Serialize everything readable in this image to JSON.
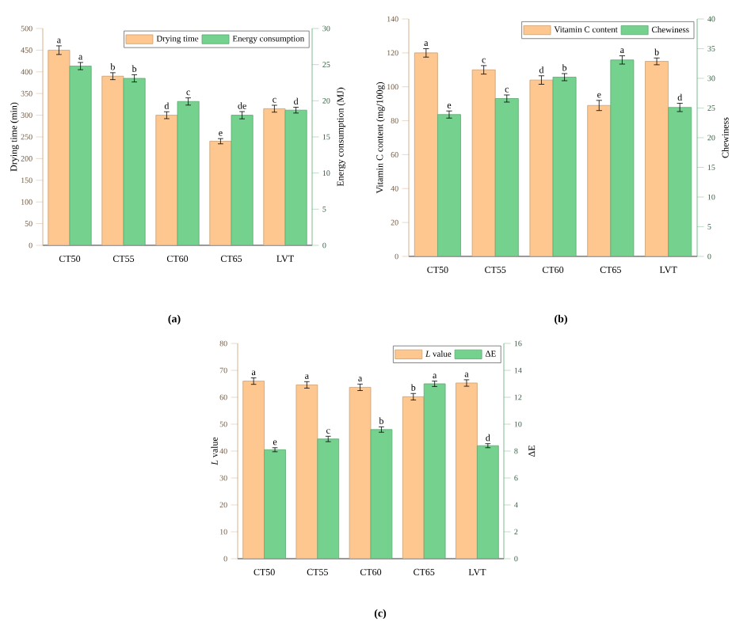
{
  "chart_data": [
    {
      "type": "bar",
      "categories": [
        "CT50",
        "CT55",
        "CT60",
        "CT65",
        "LVT"
      ],
      "ylabel": "Drying time (min)",
      "y2label": "Energy consumption (MJ)",
      "ylim": [
        0,
        500
      ],
      "yticks": [
        0,
        50,
        100,
        150,
        200,
        250,
        300,
        350,
        400,
        450,
        500
      ],
      "y2lim": [
        0,
        30
      ],
      "y2ticks": [
        0,
        5,
        10,
        15,
        20,
        25,
        30
      ],
      "legend": "top right",
      "annotations": [
        "(a)"
      ],
      "series": [
        {
          "name": "Drying time",
          "color": "#fdc78f",
          "values": [
            450,
            390,
            300,
            240,
            315
          ],
          "errors": [
            10,
            8,
            8,
            6,
            8
          ],
          "value_labels": [
            "a",
            "b",
            "d",
            "e",
            "c"
          ]
        },
        {
          "name": "Energy consumption",
          "color": "#74d28e",
          "axis": "y2",
          "values": [
            24.8,
            23.1,
            19.9,
            18.0,
            18.7
          ],
          "errors": [
            0.5,
            0.5,
            0.5,
            0.5,
            0.4
          ],
          "value_labels": [
            "a",
            "b",
            "c",
            "de",
            "d"
          ]
        }
      ]
    },
    {
      "type": "bar",
      "categories": [
        "CT50",
        "CT55",
        "CT60",
        "CT65",
        "LVT"
      ],
      "ylabel": "Vitamin C content (mg/100g)",
      "y2label": "Chewiness",
      "ylim": [
        0,
        140
      ],
      "yticks": [
        0,
        20,
        40,
        60,
        80,
        100,
        120,
        140
      ],
      "y2lim": [
        0,
        40
      ],
      "y2ticks": [
        0,
        5,
        10,
        15,
        20,
        25,
        30,
        35,
        40
      ],
      "legend": "top right",
      "annotations": [
        "(b)"
      ],
      "series": [
        {
          "name": "Vitamin C content",
          "color": "#fdc78f",
          "values": [
            120,
            110,
            104,
            89,
            115
          ],
          "errors": [
            2.5,
            2.5,
            2.5,
            3,
            2
          ],
          "value_labels": [
            "a",
            "c",
            "d",
            "e",
            "b"
          ]
        },
        {
          "name": "Chewiness",
          "color": "#74d28e",
          "axis": "y2",
          "values": [
            23.9,
            26.6,
            30.2,
            33.1,
            25.1
          ],
          "errors": [
            0.6,
            0.6,
            0.6,
            0.7,
            0.7
          ],
          "value_labels": [
            "e",
            "c",
            "b",
            "a",
            "d"
          ]
        }
      ]
    },
    {
      "type": "bar",
      "categories": [
        "CT50",
        "CT55",
        "CT60",
        "CT65",
        "LVT"
      ],
      "ylabel": "*L* value",
      "y2label": "ΔE",
      "ylim": [
        0,
        80
      ],
      "yticks": [
        0,
        10,
        20,
        30,
        40,
        50,
        60,
        70,
        80
      ],
      "y2lim": [
        0,
        16
      ],
      "y2ticks": [
        0,
        2,
        4,
        6,
        8,
        10,
        12,
        14,
        16
      ],
      "legend": "top right",
      "annotations": [
        "(c)"
      ],
      "series": [
        {
          "name": "*L* value",
          "color": "#fdc78f",
          "values": [
            66,
            64.6,
            63.7,
            60.2,
            65.3
          ],
          "errors": [
            1.2,
            1.2,
            1.2,
            1.2,
            1.2
          ],
          "value_labels": [
            "a",
            "a",
            "a",
            "b",
            "a"
          ]
        },
        {
          "name": "ΔE",
          "color": "#74d28e",
          "axis": "y2",
          "values": [
            8.1,
            8.9,
            9.6,
            13.0,
            8.4
          ],
          "errors": [
            0.15,
            0.2,
            0.2,
            0.2,
            0.15
          ],
          "value_labels": [
            "e",
            "c",
            "b",
            "a",
            "d"
          ]
        }
      ]
    }
  ]
}
